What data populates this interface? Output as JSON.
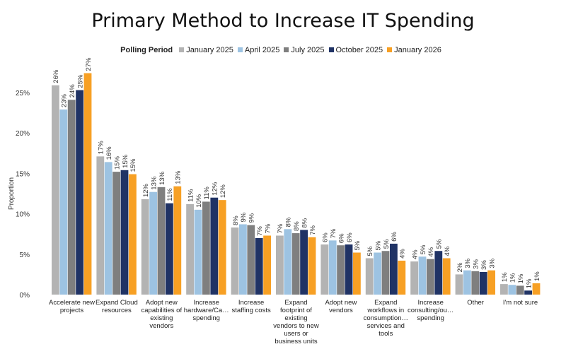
{
  "chart_data": {
    "type": "bar",
    "title": "Primary Method to Increase IT Spending",
    "legend_title": "Polling Period",
    "legend_placement": "top",
    "ylabel": "Proportion",
    "xlabel": "",
    "ylim": [
      0,
      27
    ],
    "yticks": [
      "0%",
      "5%",
      "10%",
      "15%",
      "20%",
      "25%"
    ],
    "ytick_values": [
      0,
      5,
      10,
      15,
      20,
      25
    ],
    "grid": false,
    "categories": [
      [
        "Accelerate new",
        "projects"
      ],
      [
        "Expand Cloud",
        "resources"
      ],
      [
        "Adopt new",
        "capabilities of",
        "existing",
        "vendors"
      ],
      [
        "Increase",
        "hardware/Ca…",
        "spending"
      ],
      [
        "Increase",
        "staffing costs"
      ],
      [
        "Expand",
        "footprint of",
        "existing",
        "vendors to new",
        "users or",
        "business units"
      ],
      [
        "Adopt new",
        "vendors"
      ],
      [
        "Expand",
        "workflows in",
        "consumption…",
        "services and",
        "tools"
      ],
      [
        "Increase",
        "consulting/ou…",
        "spending"
      ],
      [
        "Other"
      ],
      [
        "I'm not sure"
      ]
    ],
    "series": [
      {
        "name": "January 2025",
        "color": "#b3b3b3",
        "values": [
          25.9,
          17.1,
          11.8,
          11.2,
          8.3,
          7.3,
          6.2,
          4.5,
          4.1,
          2.5,
          1.3
        ],
        "labels": [
          "26%",
          "17%",
          "12%",
          "11%",
          "8%",
          "7%",
          "6%",
          "5%",
          "4%",
          "2%",
          "1%"
        ]
      },
      {
        "name": "April 2025",
        "color": "#9dc3e2",
        "values": [
          22.9,
          16.4,
          12.7,
          10.5,
          8.7,
          8.1,
          6.7,
          5.2,
          4.7,
          3.0,
          1.2
        ],
        "labels": [
          "23%",
          "16%",
          "13%",
          "10%",
          "9%",
          "8%",
          "7%",
          "5%",
          "5%",
          "3%",
          "1%"
        ]
      },
      {
        "name": "July 2025",
        "color": "#7f7f7f",
        "values": [
          24.1,
          15.2,
          13.3,
          11.5,
          8.6,
          7.6,
          6.1,
          5.4,
          4.4,
          2.9,
          1.1
        ],
        "labels": [
          "24%",
          "15%",
          "13%",
          "11%",
          "9%",
          "8%",
          "6%",
          "5%",
          "4%",
          "3%",
          "1%"
        ]
      },
      {
        "name": "October 2025",
        "color": "#203365",
        "values": [
          25.3,
          15.4,
          11.3,
          12.0,
          7.0,
          8.0,
          6.2,
          6.3,
          5.4,
          2.8,
          0.5
        ],
        "labels": [
          "25%",
          "15%",
          "11%",
          "12%",
          "7%",
          "8%",
          "6%",
          "6%",
          "5%",
          "3%",
          "1%"
        ]
      },
      {
        "name": "January 2026",
        "color": "#f7a024",
        "values": [
          27.4,
          14.9,
          13.4,
          11.7,
          7.3,
          7.1,
          5.2,
          4.2,
          4.5,
          3.0,
          1.4
        ],
        "labels": [
          "27%",
          "15%",
          "13%",
          "12%",
          "7%",
          "7%",
          "5%",
          "4%",
          "4%",
          "3%",
          "1%"
        ]
      }
    ]
  }
}
